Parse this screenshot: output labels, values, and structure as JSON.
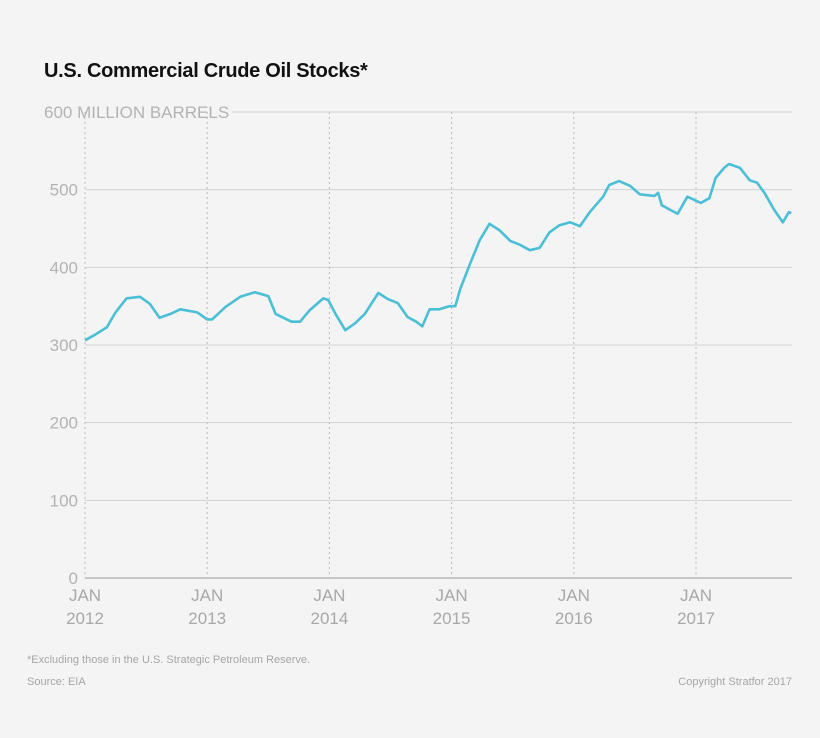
{
  "chart_data": {
    "type": "line",
    "title": "U.S. Commercial Crude Oil Stocks*",
    "ylabel": "MILLION BARRELS",
    "ylim": [
      0,
      600
    ],
    "xlim": [
      2012.0,
      2017.78
    ],
    "yticks": [
      0,
      100,
      200,
      300,
      400,
      500,
      600
    ],
    "ytick_labels": [
      "0",
      "100",
      "200",
      "300",
      "400",
      "500",
      "600 MILLION BARRELS"
    ],
    "xticks": [
      {
        "year": 2012,
        "label1": "JAN",
        "label2": "2012"
      },
      {
        "year": 2013,
        "label1": "JAN",
        "label2": "2013"
      },
      {
        "year": 2014,
        "label1": "JAN",
        "label2": "2014"
      },
      {
        "year": 2015,
        "label1": "JAN",
        "label2": "2015"
      },
      {
        "year": 2016,
        "label1": "JAN",
        "label2": "2016"
      },
      {
        "year": 2017,
        "label1": "JAN",
        "label2": "2017"
      }
    ],
    "grid": "horizontal solid, vertical dotted at January",
    "line_color": "#4bbfd6",
    "series": [
      {
        "x": [
          2012.0,
          2012.08,
          2012.18,
          2012.25,
          2012.34,
          2012.45,
          2012.53,
          2012.61,
          2012.7,
          2012.78,
          2012.92,
          2013.0,
          2013.04,
          2013.15,
          2013.27,
          2013.39,
          2013.5,
          2013.56,
          2013.69,
          2013.76,
          2013.84,
          2013.95,
          2013.99,
          2014.05,
          2014.13,
          2014.21,
          2014.29,
          2014.4,
          2014.48,
          2014.56,
          2014.64,
          2014.71,
          2014.76,
          2014.82,
          2014.9,
          2014.98,
          2015.03,
          2015.07,
          2015.15,
          2015.23,
          2015.31,
          2015.39,
          2015.48,
          2015.56,
          2015.64,
          2015.72,
          2015.8,
          2015.88,
          2015.97,
          2016.05,
          2016.13,
          2016.24,
          2016.29,
          2016.37,
          2016.46,
          2016.54,
          2016.66,
          2016.69,
          2016.72,
          2016.8,
          2016.85,
          2016.93,
          2017.04,
          2017.11,
          2017.16,
          2017.23,
          2017.27,
          2017.36,
          2017.44,
          2017.5,
          2017.56,
          2017.64,
          2017.71,
          2017.76,
          2017.78
        ],
        "y": [
          306,
          313,
          323,
          342,
          360,
          362,
          353,
          335,
          340,
          346,
          342,
          333,
          333,
          349,
          362,
          368,
          363,
          340,
          330,
          330,
          345,
          360,
          358,
          340,
          319,
          328,
          340,
          367,
          359,
          354,
          336,
          330,
          324,
          346,
          346,
          350,
          350,
          372,
          404,
          435,
          456,
          448,
          434,
          429,
          422,
          425,
          445,
          454,
          458,
          453,
          471,
          491,
          506,
          511,
          505,
          494,
          492,
          496,
          480,
          473,
          469,
          491,
          483,
          489,
          515,
          528,
          533,
          528,
          512,
          509,
          496,
          474,
          458,
          471,
          470
        ]
      }
    ]
  },
  "footnote": "*Excluding those in the U.S. Strategic Petroleum Reserve.",
  "source": "Source: EIA",
  "copyright": "Copyright Stratfor 2017"
}
